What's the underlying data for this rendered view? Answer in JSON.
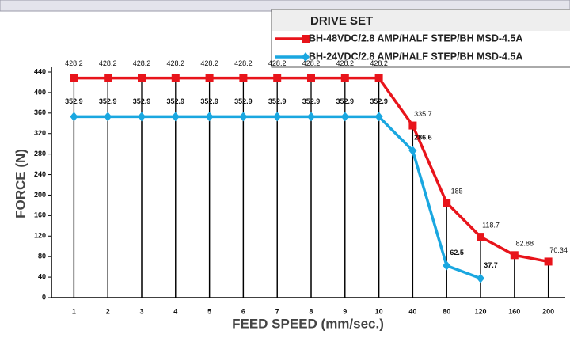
{
  "chart_data": {
    "type": "line",
    "legend_title": "DRIVE SET",
    "xlabel": "FEED SPEED (mm/sec.)",
    "ylabel": "FORCE (N)",
    "categories": [
      "1",
      "2",
      "3",
      "4",
      "5",
      "6",
      "7",
      "8",
      "9",
      "10",
      "40",
      "80",
      "120",
      "160",
      "200"
    ],
    "series": [
      {
        "name": "BH-48VDC/2.8 AMP/HALF STEP/BH MSD-4.5A",
        "color": "#e8141b",
        "marker": "square",
        "values": [
          428.2,
          428.2,
          428.2,
          428.2,
          428.2,
          428.2,
          428.2,
          428.2,
          428.2,
          428.2,
          335.7,
          185,
          118.7,
          82.88,
          70.34
        ]
      },
      {
        "name": "BH-24VDC/2.8 AMP/HALF STEP/BH MSD-4.5A",
        "color": "#1aa7e0",
        "marker": "diamond",
        "values": [
          352.9,
          352.9,
          352.9,
          352.9,
          352.9,
          352.9,
          352.9,
          352.9,
          352.9,
          352.9,
          286.6,
          62.5,
          37.7,
          null,
          null
        ]
      }
    ],
    "ylim": [
      0,
      440
    ],
    "yticks": [
      0,
      40,
      80,
      120,
      160,
      200,
      240,
      280,
      320,
      360,
      400,
      440
    ],
    "drop_lines": true
  }
}
